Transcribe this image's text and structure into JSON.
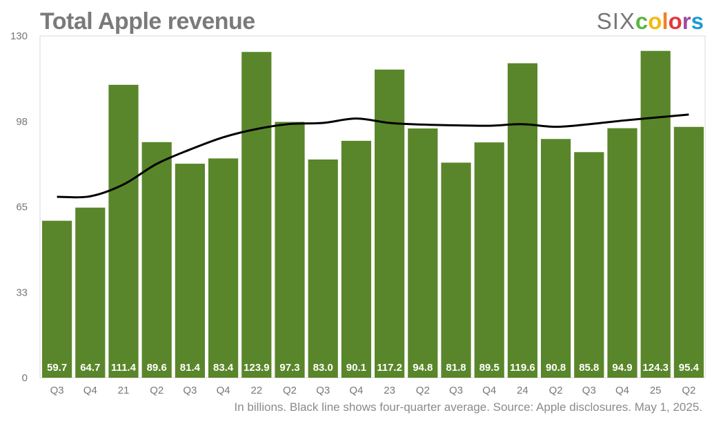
{
  "chart_data": {
    "type": "bar",
    "title": "Total Apple revenue",
    "categories": [
      "Q3",
      "Q4",
      "21",
      "Q2",
      "Q3",
      "Q4",
      "22",
      "Q2",
      "Q3",
      "Q4",
      "23",
      "Q2",
      "Q3",
      "Q4",
      "24",
      "Q2",
      "Q3",
      "Q4",
      "25",
      "Q2"
    ],
    "values": [
      59.7,
      64.7,
      111.4,
      89.6,
      81.4,
      83.4,
      123.9,
      97.3,
      83.0,
      90.1,
      117.2,
      94.8,
      81.8,
      89.5,
      119.6,
      90.8,
      85.8,
      94.9,
      124.3,
      95.4
    ],
    "value_labels": [
      "59.7",
      "64.7",
      "111.4",
      "89.6",
      "81.4",
      "83.4",
      "123.9",
      "97.3",
      "83.0",
      "90.1",
      "117.2",
      "94.8",
      "81.8",
      "89.5",
      "119.6",
      "90.8",
      "85.8",
      "94.9",
      "124.3",
      "95.4"
    ],
    "series": [
      {
        "name": "Four-quarter average",
        "type": "line",
        "color": "#000000",
        "values": [
          68.8,
          69.0,
          73.5,
          81.35,
          86.78,
          91.45,
          94.58,
          96.5,
          96.9,
          98.58,
          96.9,
          96.28,
          95.98,
          95.83,
          96.43,
          95.43,
          96.43,
          97.78,
          98.95,
          100.1
        ]
      }
    ],
    "yticks": [
      "0",
      "33",
      "65",
      "98",
      "130"
    ],
    "ytick_values": [
      0,
      32.5,
      65,
      97.5,
      130
    ],
    "ylim": [
      0,
      130
    ],
    "xlabel": "",
    "ylabel": "",
    "bar_color": "#59862a",
    "footnote": "In billions. Black line shows four-quarter average. Source: Apple disclosures. May 1, 2025."
  },
  "logo": {
    "six": "SIX",
    "colors": [
      "c",
      "o",
      "l",
      "o",
      "r",
      "s"
    ],
    "palette": [
      "#5bb646",
      "#f5b90f",
      "#f08424",
      "#e2383f",
      "#9c4c9d",
      "#1f9ad6"
    ]
  }
}
